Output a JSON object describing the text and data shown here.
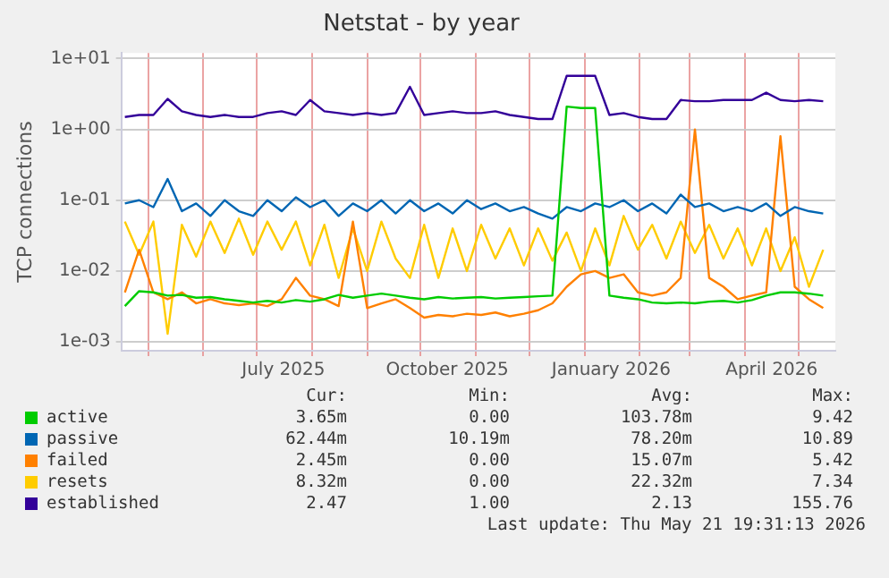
{
  "chart_data": {
    "type": "line",
    "title": "Netstat - by year",
    "ylabel": "TCP connections",
    "log": true,
    "grid": true,
    "legend": "bottom",
    "marker": "none",
    "xlim": [
      "2025-04-16",
      "2026-05-21T19:31"
    ],
    "xticks": [
      {
        "value": "2025-05-01",
        "label": null
      },
      {
        "value": "2025-06-01",
        "label": null
      },
      {
        "value": "2025-07-01",
        "label": null
      },
      {
        "value": "2025-07-16",
        "label": "July 2025"
      },
      {
        "value": "2025-08-01",
        "label": null
      },
      {
        "value": "2025-09-01",
        "label": null
      },
      {
        "value": "2025-10-01",
        "label": null
      },
      {
        "value": "2025-10-16",
        "label": "October 2025"
      },
      {
        "value": "2025-11-01",
        "label": null
      },
      {
        "value": "2025-12-01",
        "label": null
      },
      {
        "value": "2026-01-01",
        "label": null
      },
      {
        "value": "2026-01-16",
        "label": "January 2026"
      },
      {
        "value": "2026-02-01",
        "label": null
      },
      {
        "value": "2026-03-01",
        "label": null
      },
      {
        "value": "2026-04-01",
        "label": null
      },
      {
        "value": "2026-04-16",
        "label": "April 2026"
      },
      {
        "value": "2026-05-01",
        "label": null
      }
    ],
    "ylim": [
      0.00075,
      12
    ],
    "yticks": [
      {
        "value": 0.001,
        "label": "1e-03"
      },
      {
        "value": 0.01,
        "label": "1e-02"
      },
      {
        "value": 0.1,
        "label": "1e-01"
      },
      {
        "value": 1,
        "label": "1e+00"
      },
      {
        "value": 10,
        "label": "1e+01"
      }
    ],
    "x": [
      "2025-04-18",
      "2025-04-26",
      "2025-05-04",
      "2025-05-12",
      "2025-05-20",
      "2025-05-28",
      "2025-06-05",
      "2025-06-13",
      "2025-06-21",
      "2025-06-29",
      "2025-07-07",
      "2025-07-15",
      "2025-07-23",
      "2025-07-31",
      "2025-08-08",
      "2025-08-16",
      "2025-08-24",
      "2025-09-01",
      "2025-09-09",
      "2025-09-17",
      "2025-09-25",
      "2025-10-03",
      "2025-10-11",
      "2025-10-19",
      "2025-10-27",
      "2025-11-04",
      "2025-11-12",
      "2025-11-20",
      "2025-11-28",
      "2025-12-06",
      "2025-12-14",
      "2025-12-22",
      "2025-12-30",
      "2026-01-07",
      "2026-01-15",
      "2026-01-23",
      "2026-01-31",
      "2026-02-08",
      "2026-02-16",
      "2026-02-24",
      "2026-03-04",
      "2026-03-12",
      "2026-03-20",
      "2026-03-28",
      "2026-04-05",
      "2026-04-13",
      "2026-04-21",
      "2026-04-29",
      "2026-05-07",
      "2026-05-15"
    ],
    "series": [
      {
        "name": "active",
        "color": "#00cc00",
        "values": [
          0.0032,
          0.0052,
          0.005,
          0.0045,
          0.0046,
          0.0042,
          0.0043,
          0.004,
          0.0038,
          0.0036,
          0.0038,
          0.0036,
          0.0039,
          0.0037,
          0.004,
          0.0046,
          0.0042,
          0.0045,
          0.0048,
          0.0045,
          0.0042,
          0.004,
          0.0043,
          0.0041,
          0.0042,
          0.0043,
          0.0041,
          0.0042,
          0.0043,
          0.0044,
          0.0045,
          2.1,
          2.0,
          2.0,
          0.0045,
          0.0042,
          0.004,
          0.0036,
          0.0035,
          0.0036,
          0.0035,
          0.0037,
          0.0038,
          0.0036,
          0.0039,
          0.0045,
          0.005,
          0.005,
          0.0048,
          0.0045
        ]
      },
      {
        "name": "passive",
        "color": "#0066b3",
        "values": [
          0.09,
          0.1,
          0.08,
          0.2,
          0.07,
          0.09,
          0.06,
          0.1,
          0.07,
          0.06,
          0.1,
          0.07,
          0.11,
          0.08,
          0.1,
          0.06,
          0.09,
          0.07,
          0.1,
          0.065,
          0.1,
          0.07,
          0.09,
          0.065,
          0.1,
          0.075,
          0.09,
          0.07,
          0.08,
          0.065,
          0.055,
          0.08,
          0.07,
          0.09,
          0.08,
          0.1,
          0.07,
          0.09,
          0.065,
          0.12,
          0.08,
          0.09,
          0.07,
          0.08,
          0.07,
          0.09,
          0.06,
          0.08,
          0.07,
          0.065
        ]
      },
      {
        "name": "failed",
        "color": "#ff8000",
        "values": [
          0.005,
          0.02,
          0.005,
          0.004,
          0.005,
          0.0035,
          0.004,
          0.0035,
          0.0033,
          0.0035,
          0.0032,
          0.004,
          0.008,
          0.0045,
          0.004,
          0.0032,
          0.05,
          0.003,
          0.0035,
          0.004,
          0.003,
          0.0022,
          0.0024,
          0.0023,
          0.0025,
          0.0024,
          0.0026,
          0.0023,
          0.0025,
          0.0028,
          0.0035,
          0.006,
          0.009,
          0.01,
          0.008,
          0.009,
          0.005,
          0.0045,
          0.005,
          0.008,
          1.0,
          0.008,
          0.006,
          0.004,
          0.0045,
          0.005,
          0.8,
          0.006,
          0.004,
          0.003
        ]
      },
      {
        "name": "resets",
        "color": "#ffcc00",
        "values": [
          0.05,
          0.017,
          0.05,
          0.0013,
          0.045,
          0.016,
          0.05,
          0.018,
          0.055,
          0.017,
          0.05,
          0.02,
          0.05,
          0.012,
          0.045,
          0.008,
          0.04,
          0.01,
          0.05,
          0.015,
          0.008,
          0.045,
          0.008,
          0.04,
          0.01,
          0.045,
          0.015,
          0.04,
          0.012,
          0.04,
          0.014,
          0.035,
          0.01,
          0.04,
          0.012,
          0.06,
          0.02,
          0.045,
          0.015,
          0.05,
          0.018,
          0.045,
          0.015,
          0.04,
          0.012,
          0.04,
          0.01,
          0.03,
          0.006,
          0.02
        ]
      },
      {
        "name": "established",
        "color": "#330099",
        "values": [
          1.5,
          1.6,
          1.6,
          2.7,
          1.8,
          1.6,
          1.5,
          1.6,
          1.5,
          1.5,
          1.7,
          1.8,
          1.6,
          2.6,
          1.8,
          1.7,
          1.6,
          1.7,
          1.6,
          1.7,
          4.0,
          1.6,
          1.7,
          1.8,
          1.7,
          1.7,
          1.8,
          1.6,
          1.5,
          1.4,
          1.4,
          5.7,
          5.7,
          5.7,
          1.6,
          1.7,
          1.5,
          1.4,
          1.4,
          2.6,
          2.5,
          2.5,
          2.6,
          2.6,
          2.6,
          3.3,
          2.6,
          2.5,
          2.6,
          2.5
        ]
      }
    ],
    "annotations": [
      "Cur:",
      "Min:",
      "Avg:",
      "Max:",
      "3.65m",
      "0.00",
      "103.78m",
      "9.42",
      "62.44m",
      "10.19m",
      "78.20m",
      "10.89",
      "2.45m",
      "0.00",
      "15.07m",
      "5.42",
      "8.32m",
      "0.00",
      "22.32m",
      "7.34",
      "2.47",
      "1.00",
      "2.13",
      "155.76",
      "Last update: Thu May 21 19:31:13 2026"
    ]
  }
}
